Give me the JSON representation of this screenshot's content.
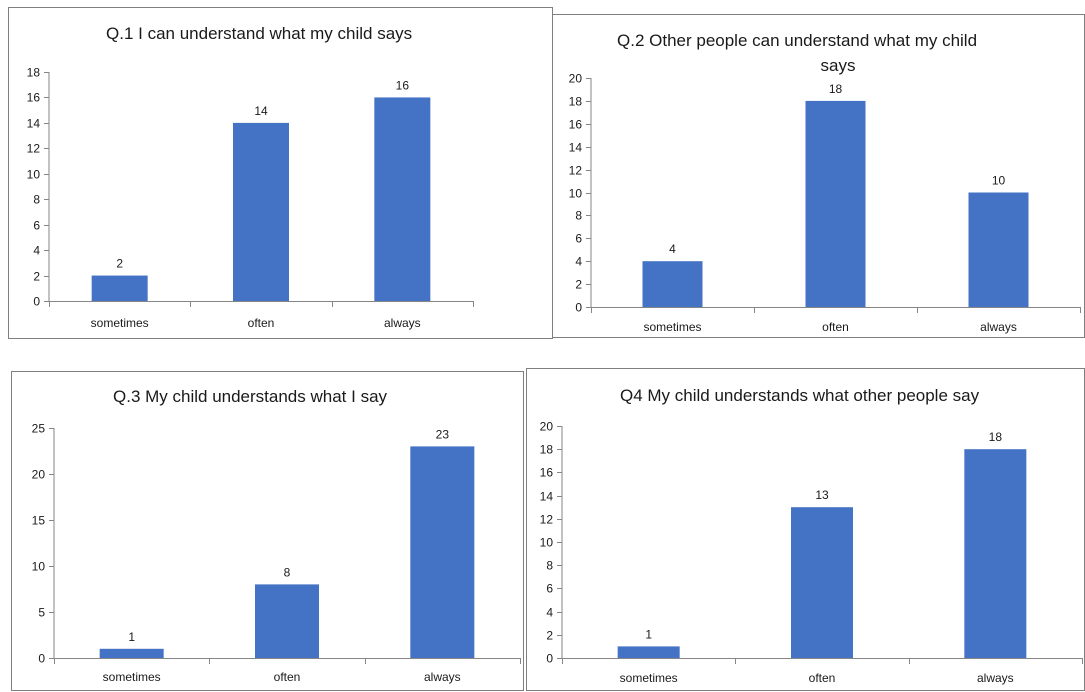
{
  "chart_data": [
    {
      "type": "bar",
      "title": "Q.1 I can understand what my child says",
      "categories": [
        "sometimes",
        "often",
        "always"
      ],
      "values": [
        2,
        14,
        16
      ],
      "ylim": [
        0,
        18
      ],
      "yticks": [
        0,
        2,
        4,
        6,
        8,
        10,
        12,
        14,
        16,
        18
      ],
      "grid": false,
      "bar_color": "#4472C4"
    },
    {
      "type": "bar",
      "title": "Q.2  Other people can understand what my child says",
      "categories": [
        "sometimes",
        "often",
        "always"
      ],
      "values": [
        4,
        18,
        10
      ],
      "ylim": [
        0,
        20
      ],
      "yticks": [
        0,
        2,
        4,
        6,
        8,
        10,
        12,
        14,
        16,
        18,
        20
      ],
      "grid": false,
      "bar_color": "#4472C4"
    },
    {
      "type": "bar",
      "title": "Q.3  My child understands what I say",
      "categories": [
        "sometimes",
        "often",
        "always"
      ],
      "values": [
        1,
        8,
        23
      ],
      "ylim": [
        0,
        25
      ],
      "yticks": [
        0,
        5,
        10,
        15,
        20,
        25
      ],
      "grid": false,
      "bar_color": "#4472C4"
    },
    {
      "type": "bar",
      "title": "Q4 My child understands what other people say",
      "categories": [
        "sometimes",
        "often",
        "always"
      ],
      "values": [
        1,
        13,
        18
      ],
      "ylim": [
        0,
        20
      ],
      "yticks": [
        0,
        2,
        4,
        6,
        8,
        10,
        12,
        14,
        16,
        18,
        20
      ],
      "grid": false,
      "bar_color": "#4472C4"
    }
  ]
}
